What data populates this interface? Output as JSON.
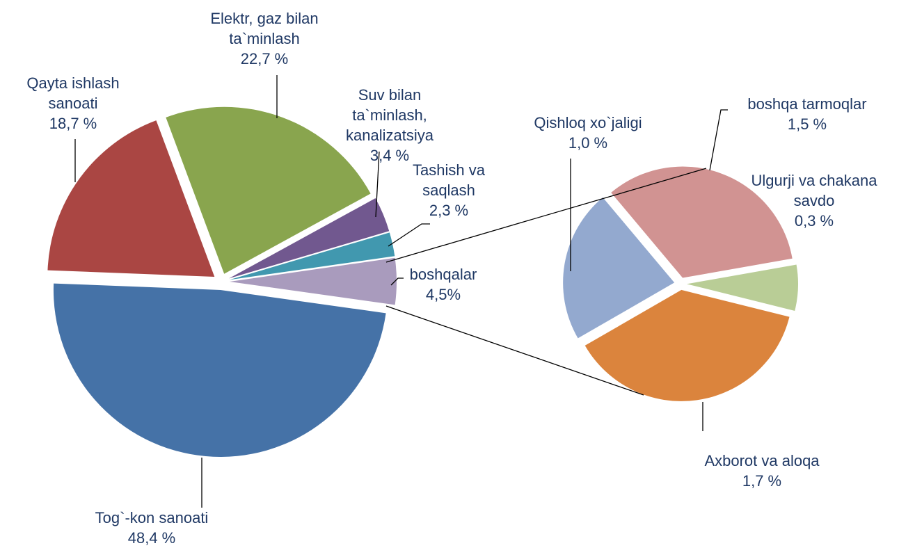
{
  "chart_data": [
    {
      "type": "pie",
      "categories": [
        "Tog`-kon sanoati",
        "Qayta ishlash sanoati",
        "Elektr, gaz bilan ta`minlash",
        "Suv bilan ta`minlash, kanalizatsiya",
        "Tashish va saqlash",
        "boshqalar"
      ],
      "values": [
        48.4,
        18.7,
        22.7,
        3.4,
        2.3,
        4.5
      ],
      "value_labels": [
        "48,4 %",
        "18,7 %",
        "22,7 %",
        "3,4 %",
        "2,3 %",
        "4,5%"
      ],
      "colors": [
        "#4572a7",
        "#aa4643",
        "#89a54e",
        "#71588f",
        "#4198af",
        "#a99bbd"
      ]
    },
    {
      "type": "pie",
      "categories": [
        "Ulgurji va chakana savdo",
        "Axborot va aloqa",
        "Qishloq xo`jaligi",
        "boshqa tarmoqlar"
      ],
      "values": [
        0.3,
        1.7,
        1.0,
        1.5
      ],
      "value_labels": [
        "0,3 %",
        "1,7 %",
        "1,0 %",
        "1,5 %"
      ],
      "colors": [
        "#b9cd96",
        "#db843d",
        "#93a9cf",
        "#d19392"
      ]
    }
  ]
}
